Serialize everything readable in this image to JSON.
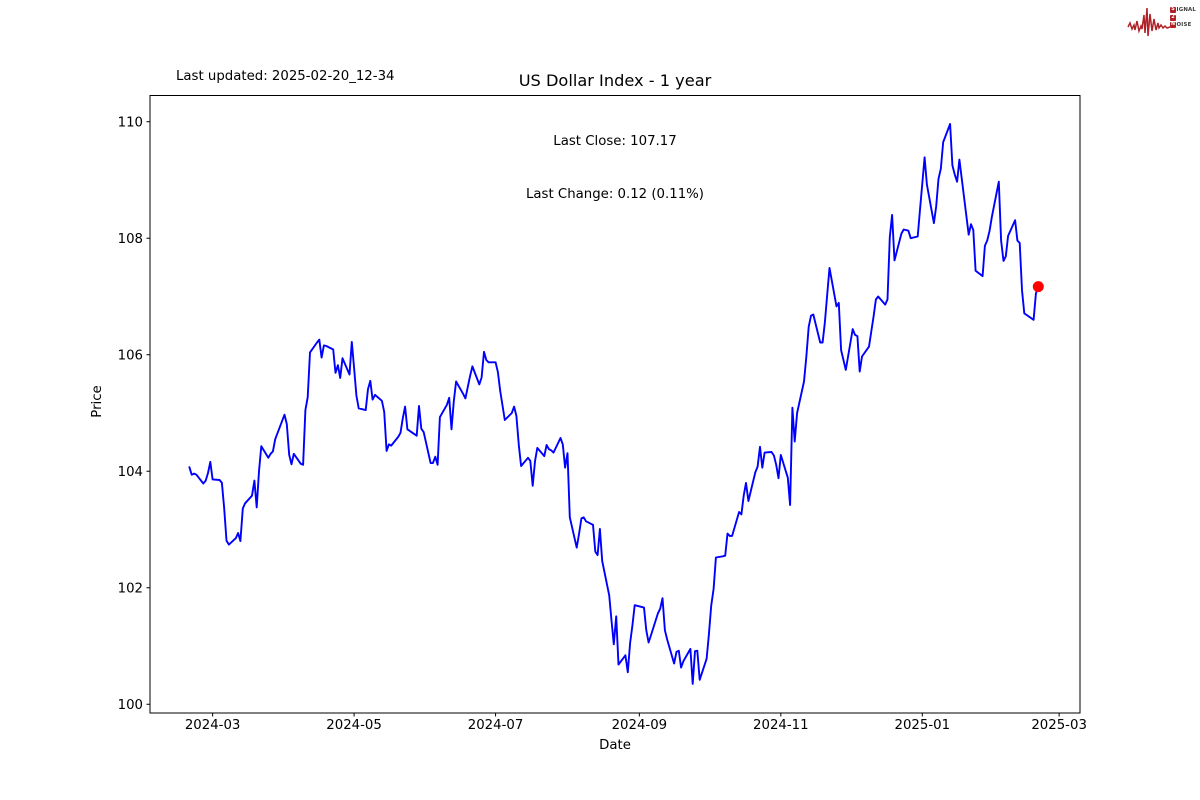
{
  "annotations": {
    "last_updated": "Last updated: 2025-02-20_12-34"
  },
  "logo": {
    "accent_color": "#b02128",
    "text_color": "#3b3b3b",
    "words": [
      {
        "initial": "S",
        "rest": "IGNAL"
      },
      {
        "initial": "2",
        "rest": ""
      },
      {
        "initial": "N",
        "rest": "OISE"
      }
    ]
  },
  "chart_data": {
    "type": "line",
    "title": "US Dollar Index - 1 year",
    "subtitle_lines": [
      "Last Close: 107.17",
      "Last Change: 0.12 (0.11%)"
    ],
    "xlabel": "Date",
    "ylabel": "Price",
    "last_close": 107.17,
    "last_change": 0.12,
    "last_change_pct": "0.11%",
    "grid": false,
    "legend": "none",
    "line_color": "#0000ff",
    "last_point_marker_color": "#ff0000",
    "axis_color": "#000000",
    "xlim": [
      "2024-02-03",
      "2025-03-10"
    ],
    "ylim": [
      99.85,
      110.45
    ],
    "x_ticks": [
      {
        "date": "2024-03-01",
        "label": "2024-03"
      },
      {
        "date": "2024-05-01",
        "label": "2024-05"
      },
      {
        "date": "2024-07-01",
        "label": "2024-07"
      },
      {
        "date": "2024-09-01",
        "label": "2024-09"
      },
      {
        "date": "2024-11-01",
        "label": "2024-11"
      },
      {
        "date": "2025-01-01",
        "label": "2025-01"
      },
      {
        "date": "2025-03-01",
        "label": "2025-03"
      }
    ],
    "y_ticks": [
      {
        "value": 100,
        "label": "100"
      },
      {
        "value": 102,
        "label": "102"
      },
      {
        "value": 104,
        "label": "104"
      },
      {
        "value": 106,
        "label": "106"
      },
      {
        "value": 108,
        "label": "108"
      },
      {
        "value": 110,
        "label": "110"
      }
    ],
    "series": [
      {
        "name": "US Dollar Index",
        "color": "#0000ff",
        "points": [
          [
            "2024-02-20",
            104.07
          ],
          [
            "2024-02-21",
            103.94
          ],
          [
            "2024-02-22",
            103.96
          ],
          [
            "2024-02-23",
            103.94
          ],
          [
            "2024-02-26",
            103.79
          ],
          [
            "2024-02-27",
            103.84
          ],
          [
            "2024-02-28",
            103.97
          ],
          [
            "2024-02-29",
            104.16
          ],
          [
            "2024-03-01",
            103.86
          ],
          [
            "2024-03-04",
            103.85
          ],
          [
            "2024-03-05",
            103.8
          ],
          [
            "2024-03-06",
            103.36
          ],
          [
            "2024-03-07",
            102.81
          ],
          [
            "2024-03-08",
            102.74
          ],
          [
            "2024-03-11",
            102.85
          ],
          [
            "2024-03-12",
            102.94
          ],
          [
            "2024-03-13",
            102.8
          ],
          [
            "2024-03-14",
            103.36
          ],
          [
            "2024-03-15",
            103.45
          ],
          [
            "2024-03-18",
            103.58
          ],
          [
            "2024-03-19",
            103.84
          ],
          [
            "2024-03-20",
            103.38
          ],
          [
            "2024-03-21",
            104.0
          ],
          [
            "2024-03-22",
            104.43
          ],
          [
            "2024-03-25",
            104.23
          ],
          [
            "2024-03-26",
            104.3
          ],
          [
            "2024-03-27",
            104.34
          ],
          [
            "2024-03-28",
            104.55
          ],
          [
            "2024-04-01",
            104.97
          ],
          [
            "2024-04-02",
            104.81
          ],
          [
            "2024-04-03",
            104.28
          ],
          [
            "2024-04-04",
            104.12
          ],
          [
            "2024-04-05",
            104.3
          ],
          [
            "2024-04-08",
            104.13
          ],
          [
            "2024-04-09",
            104.11
          ],
          [
            "2024-04-10",
            105.05
          ],
          [
            "2024-04-11",
            105.27
          ],
          [
            "2024-04-12",
            106.04
          ],
          [
            "2024-04-15",
            106.21
          ],
          [
            "2024-04-16",
            106.26
          ],
          [
            "2024-04-17",
            105.95
          ],
          [
            "2024-04-18",
            106.16
          ],
          [
            "2024-04-19",
            106.15
          ],
          [
            "2024-04-22",
            106.09
          ],
          [
            "2024-04-23",
            105.69
          ],
          [
            "2024-04-24",
            105.82
          ],
          [
            "2024-04-25",
            105.6
          ],
          [
            "2024-04-26",
            105.94
          ],
          [
            "2024-04-29",
            105.66
          ],
          [
            "2024-04-30",
            106.22
          ],
          [
            "2024-05-01",
            105.77
          ],
          [
            "2024-05-02",
            105.3
          ],
          [
            "2024-05-03",
            105.08
          ],
          [
            "2024-05-06",
            105.05
          ],
          [
            "2024-05-07",
            105.41
          ],
          [
            "2024-05-08",
            105.55
          ],
          [
            "2024-05-09",
            105.23
          ],
          [
            "2024-05-10",
            105.31
          ],
          [
            "2024-05-13",
            105.21
          ],
          [
            "2024-05-14",
            105.02
          ],
          [
            "2024-05-15",
            104.35
          ],
          [
            "2024-05-16",
            104.46
          ],
          [
            "2024-05-17",
            104.44
          ],
          [
            "2024-05-20",
            104.59
          ],
          [
            "2024-05-21",
            104.66
          ],
          [
            "2024-05-22",
            104.91
          ],
          [
            "2024-05-23",
            105.11
          ],
          [
            "2024-05-24",
            104.72
          ],
          [
            "2024-05-28",
            104.61
          ],
          [
            "2024-05-29",
            105.12
          ],
          [
            "2024-05-30",
            104.73
          ],
          [
            "2024-05-31",
            104.67
          ],
          [
            "2024-06-03",
            104.14
          ],
          [
            "2024-06-04",
            104.14
          ],
          [
            "2024-06-05",
            104.25
          ],
          [
            "2024-06-06",
            104.11
          ],
          [
            "2024-06-07",
            104.93
          ],
          [
            "2024-06-10",
            105.14
          ],
          [
            "2024-06-11",
            105.26
          ],
          [
            "2024-06-12",
            104.72
          ],
          [
            "2024-06-13",
            105.2
          ],
          [
            "2024-06-14",
            105.54
          ],
          [
            "2024-06-17",
            105.33
          ],
          [
            "2024-06-18",
            105.25
          ],
          [
            "2024-06-20",
            105.63
          ],
          [
            "2024-06-21",
            105.8
          ],
          [
            "2024-06-24",
            105.49
          ],
          [
            "2024-06-25",
            105.61
          ],
          [
            "2024-06-26",
            106.05
          ],
          [
            "2024-06-27",
            105.91
          ],
          [
            "2024-06-28",
            105.87
          ],
          [
            "2024-07-01",
            105.87
          ],
          [
            "2024-07-02",
            105.7
          ],
          [
            "2024-07-03",
            105.38
          ],
          [
            "2024-07-05",
            104.88
          ],
          [
            "2024-07-08",
            105.0
          ],
          [
            "2024-07-09",
            105.11
          ],
          [
            "2024-07-10",
            104.95
          ],
          [
            "2024-07-11",
            104.45
          ],
          [
            "2024-07-12",
            104.09
          ],
          [
            "2024-07-15",
            104.23
          ],
          [
            "2024-07-16",
            104.18
          ],
          [
            "2024-07-17",
            103.75
          ],
          [
            "2024-07-18",
            104.17
          ],
          [
            "2024-07-19",
            104.4
          ],
          [
            "2024-07-22",
            104.26
          ],
          [
            "2024-07-23",
            104.45
          ],
          [
            "2024-07-24",
            104.38
          ],
          [
            "2024-07-25",
            104.36
          ],
          [
            "2024-07-26",
            104.32
          ],
          [
            "2024-07-29",
            104.57
          ],
          [
            "2024-07-30",
            104.46
          ],
          [
            "2024-07-31",
            104.06
          ],
          [
            "2024-08-01",
            104.31
          ],
          [
            "2024-08-02",
            103.21
          ],
          [
            "2024-08-05",
            102.69
          ],
          [
            "2024-08-06",
            102.93
          ],
          [
            "2024-08-07",
            103.19
          ],
          [
            "2024-08-08",
            103.21
          ],
          [
            "2024-08-09",
            103.14
          ],
          [
            "2024-08-12",
            103.08
          ],
          [
            "2024-08-13",
            102.62
          ],
          [
            "2024-08-14",
            102.56
          ],
          [
            "2024-08-15",
            103.01
          ],
          [
            "2024-08-16",
            102.46
          ],
          [
            "2024-08-19",
            101.87
          ],
          [
            "2024-08-20",
            101.44
          ],
          [
            "2024-08-21",
            101.03
          ],
          [
            "2024-08-22",
            101.51
          ],
          [
            "2024-08-23",
            100.68
          ],
          [
            "2024-08-26",
            100.84
          ],
          [
            "2024-08-27",
            100.55
          ],
          [
            "2024-08-28",
            101.05
          ],
          [
            "2024-08-29",
            101.35
          ],
          [
            "2024-08-30",
            101.7
          ],
          [
            "2024-09-03",
            101.66
          ],
          [
            "2024-09-04",
            101.27
          ],
          [
            "2024-09-05",
            101.06
          ],
          [
            "2024-09-06",
            101.18
          ],
          [
            "2024-09-09",
            101.56
          ],
          [
            "2024-09-10",
            101.64
          ],
          [
            "2024-09-11",
            101.82
          ],
          [
            "2024-09-12",
            101.27
          ],
          [
            "2024-09-13",
            101.11
          ],
          [
            "2024-09-16",
            100.7
          ],
          [
            "2024-09-17",
            100.9
          ],
          [
            "2024-09-18",
            100.92
          ],
          [
            "2024-09-19",
            100.63
          ],
          [
            "2024-09-20",
            100.74
          ],
          [
            "2024-09-23",
            100.95
          ],
          [
            "2024-09-24",
            100.35
          ],
          [
            "2024-09-25",
            100.91
          ],
          [
            "2024-09-26",
            100.92
          ],
          [
            "2024-09-27",
            100.42
          ],
          [
            "2024-09-30",
            100.78
          ],
          [
            "2024-10-01",
            101.2
          ],
          [
            "2024-10-02",
            101.69
          ],
          [
            "2024-10-03",
            101.98
          ],
          [
            "2024-10-04",
            102.52
          ],
          [
            "2024-10-07",
            102.54
          ],
          [
            "2024-10-08",
            102.55
          ],
          [
            "2024-10-09",
            102.93
          ],
          [
            "2024-10-10",
            102.89
          ],
          [
            "2024-10-11",
            102.89
          ],
          [
            "2024-10-14",
            103.3
          ],
          [
            "2024-10-15",
            103.26
          ],
          [
            "2024-10-16",
            103.58
          ],
          [
            "2024-10-17",
            103.8
          ],
          [
            "2024-10-18",
            103.49
          ],
          [
            "2024-10-21",
            103.98
          ],
          [
            "2024-10-22",
            104.08
          ],
          [
            "2024-10-23",
            104.42
          ],
          [
            "2024-10-24",
            104.06
          ],
          [
            "2024-10-25",
            104.32
          ],
          [
            "2024-10-28",
            104.33
          ],
          [
            "2024-10-29",
            104.27
          ],
          [
            "2024-10-30",
            104.11
          ],
          [
            "2024-10-31",
            103.88
          ],
          [
            "2024-11-01",
            104.28
          ],
          [
            "2024-11-04",
            103.89
          ],
          [
            "2024-11-05",
            103.42
          ],
          [
            "2024-11-06",
            105.09
          ],
          [
            "2024-11-07",
            104.51
          ],
          [
            "2024-11-08",
            105.0
          ],
          [
            "2024-11-11",
            105.54
          ],
          [
            "2024-11-12",
            105.96
          ],
          [
            "2024-11-13",
            106.48
          ],
          [
            "2024-11-14",
            106.67
          ],
          [
            "2024-11-15",
            106.69
          ],
          [
            "2024-11-18",
            106.21
          ],
          [
            "2024-11-19",
            106.21
          ],
          [
            "2024-11-20",
            106.56
          ],
          [
            "2024-11-21",
            107.03
          ],
          [
            "2024-11-22",
            107.49
          ],
          [
            "2024-11-25",
            106.83
          ],
          [
            "2024-11-26",
            106.89
          ],
          [
            "2024-11-27",
            106.08
          ],
          [
            "2024-11-29",
            105.74
          ],
          [
            "2024-12-02",
            106.44
          ],
          [
            "2024-12-03",
            106.34
          ],
          [
            "2024-12-04",
            106.32
          ],
          [
            "2024-12-05",
            105.71
          ],
          [
            "2024-12-06",
            105.97
          ],
          [
            "2024-12-09",
            106.14
          ],
          [
            "2024-12-10",
            106.4
          ],
          [
            "2024-12-11",
            106.66
          ],
          [
            "2024-12-12",
            106.95
          ],
          [
            "2024-12-13",
            107.0
          ],
          [
            "2024-12-16",
            106.86
          ],
          [
            "2024-12-17",
            106.95
          ],
          [
            "2024-12-18",
            108.02
          ],
          [
            "2024-12-19",
            108.4
          ],
          [
            "2024-12-20",
            107.62
          ],
          [
            "2024-12-23",
            108.08
          ],
          [
            "2024-12-24",
            108.15
          ],
          [
            "2024-12-26",
            108.13
          ],
          [
            "2024-12-27",
            108.0
          ],
          [
            "2024-12-30",
            108.03
          ],
          [
            "2024-12-31",
            108.49
          ],
          [
            "2025-01-02",
            109.39
          ],
          [
            "2025-01-03",
            108.92
          ],
          [
            "2025-01-06",
            108.26
          ],
          [
            "2025-01-07",
            108.55
          ],
          [
            "2025-01-08",
            109.02
          ],
          [
            "2025-01-09",
            109.19
          ],
          [
            "2025-01-10",
            109.65
          ],
          [
            "2025-01-13",
            109.96
          ],
          [
            "2025-01-14",
            109.25
          ],
          [
            "2025-01-15",
            109.09
          ],
          [
            "2025-01-16",
            108.97
          ],
          [
            "2025-01-17",
            109.35
          ],
          [
            "2025-01-21",
            108.06
          ],
          [
            "2025-01-22",
            108.24
          ],
          [
            "2025-01-23",
            108.14
          ],
          [
            "2025-01-24",
            107.44
          ],
          [
            "2025-01-27",
            107.35
          ],
          [
            "2025-01-28",
            107.87
          ],
          [
            "2025-01-29",
            107.96
          ],
          [
            "2025-01-30",
            108.13
          ],
          [
            "2025-01-31",
            108.37
          ],
          [
            "2025-02-03",
            108.97
          ],
          [
            "2025-02-04",
            107.96
          ],
          [
            "2025-02-05",
            107.61
          ],
          [
            "2025-02-06",
            107.69
          ],
          [
            "2025-02-07",
            108.04
          ],
          [
            "2025-02-10",
            108.31
          ],
          [
            "2025-02-11",
            107.96
          ],
          [
            "2025-02-12",
            107.92
          ],
          [
            "2025-02-13",
            107.11
          ],
          [
            "2025-02-14",
            106.71
          ],
          [
            "2025-02-18",
            106.6
          ],
          [
            "2025-02-19",
            107.05
          ],
          [
            "2025-02-20",
            107.17
          ]
        ]
      }
    ]
  }
}
